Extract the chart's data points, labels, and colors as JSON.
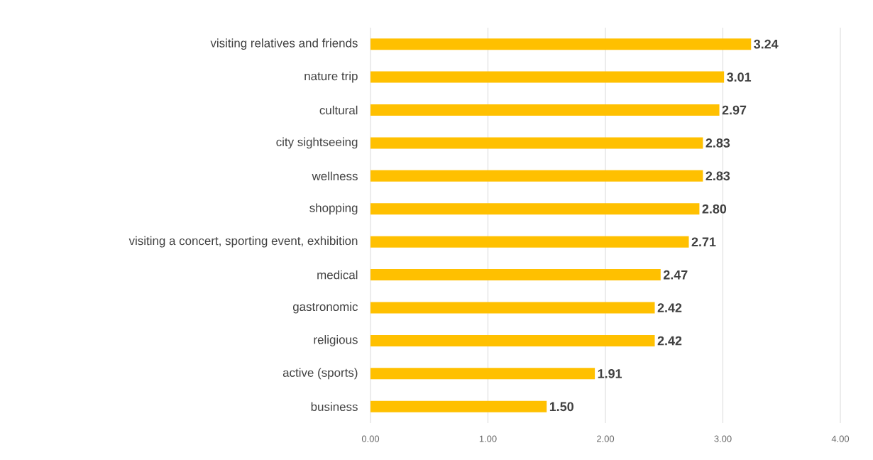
{
  "chart_data": {
    "type": "bar",
    "orientation": "horizontal",
    "categories": [
      "visiting relatives and friends",
      "nature trip",
      "cultural",
      "city sightseeing",
      "wellness",
      "shopping",
      "visiting a concert, sporting event, exhibition",
      "medical",
      "gastronomic",
      "religious",
      "active (sports)",
      "business"
    ],
    "values": [
      3.24,
      3.01,
      2.97,
      2.83,
      2.83,
      2.8,
      2.71,
      2.47,
      2.42,
      2.42,
      1.91,
      1.5
    ],
    "value_labels": [
      "3.24",
      "3.01",
      "2.97",
      "2.83",
      "2.83",
      "2.80",
      "2.71",
      "2.47",
      "2.42",
      "2.42",
      "1.91",
      "1.50"
    ],
    "color": "#ffc000",
    "xlim": [
      0,
      4
    ],
    "xticks": [
      {
        "value": 0,
        "label": "0.00"
      },
      {
        "value": 1,
        "label": "1.00"
      },
      {
        "value": 2,
        "label": "2.00"
      },
      {
        "value": 3,
        "label": "3.00"
      },
      {
        "value": 4,
        "label": "4.00"
      }
    ],
    "grid": "x"
  }
}
